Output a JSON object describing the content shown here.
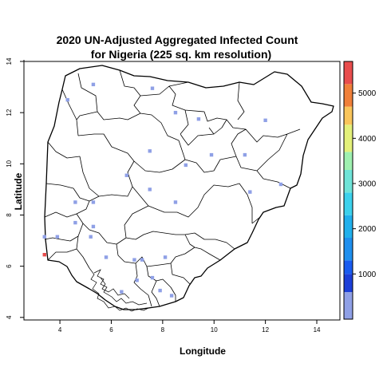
{
  "title_line1": "2020 UN-Adjusted Aggregated Infected Count",
  "title_line2": "for Nigeria (225 sq. km resolution)",
  "xlabel": "Longitude",
  "ylabel": "Latitude",
  "x_ticks": [
    "4",
    "6",
    "8",
    "10",
    "12",
    "14"
  ],
  "y_ticks": [
    "4",
    "6",
    "8",
    "10",
    "12",
    "14"
  ],
  "colorbar_ticks": [
    "1000",
    "2000",
    "3000",
    "4000",
    "5000"
  ],
  "colorbar": {
    "min": 0,
    "max": 5700,
    "bands": [
      {
        "from": 0,
        "to": 600,
        "color": "#8fa0e6"
      },
      {
        "from": 600,
        "to": 1000,
        "color": "#1c3fd8"
      },
      {
        "from": 1000,
        "to": 1300,
        "color": "#1a5cf0"
      },
      {
        "from": 1300,
        "to": 1800,
        "color": "#1f8fee"
      },
      {
        "from": 1800,
        "to": 2300,
        "color": "#21b0ec"
      },
      {
        "from": 2300,
        "to": 2800,
        "color": "#3dd1ec"
      },
      {
        "from": 2800,
        "to": 3300,
        "color": "#6fe3d8"
      },
      {
        "from": 3300,
        "to": 3700,
        "color": "#9ff0b0"
      },
      {
        "from": 3700,
        "to": 4300,
        "color": "#e3f07a"
      },
      {
        "from": 4300,
        "to": 4700,
        "color": "#f9c55b"
      },
      {
        "from": 4700,
        "to": 5200,
        "color": "#f0803a"
      },
      {
        "from": 5200,
        "to": 5700,
        "color": "#e84d4d"
      }
    ]
  },
  "chart_data": {
    "type": "scatter",
    "title": "2020 UN-Adjusted Aggregated Infected Count for Nigeria (225 sq. km resolution)",
    "xlabel": "Longitude",
    "ylabel": "Latitude",
    "xlim": [
      2.6,
      14.9
    ],
    "ylim": [
      3.9,
      14.0
    ],
    "points": [
      {
        "lon": 4.3,
        "lat": 12.5,
        "value": 300
      },
      {
        "lon": 5.3,
        "lat": 13.1,
        "value": 300
      },
      {
        "lon": 7.6,
        "lat": 12.95,
        "value": 300
      },
      {
        "lon": 8.5,
        "lat": 12.0,
        "value": 300
      },
      {
        "lon": 9.4,
        "lat": 11.75,
        "value": 300
      },
      {
        "lon": 12.0,
        "lat": 11.7,
        "value": 300
      },
      {
        "lon": 7.5,
        "lat": 10.5,
        "value": 300
      },
      {
        "lon": 9.9,
        "lat": 10.35,
        "value": 300
      },
      {
        "lon": 11.2,
        "lat": 10.35,
        "value": 300
      },
      {
        "lon": 8.9,
        "lat": 9.95,
        "value": 300
      },
      {
        "lon": 6.6,
        "lat": 9.55,
        "value": 300
      },
      {
        "lon": 12.6,
        "lat": 9.2,
        "value": 300
      },
      {
        "lon": 11.4,
        "lat": 8.9,
        "value": 300
      },
      {
        "lon": 7.5,
        "lat": 9.0,
        "value": 300
      },
      {
        "lon": 4.6,
        "lat": 8.5,
        "value": 300
      },
      {
        "lon": 5.3,
        "lat": 8.5,
        "value": 300
      },
      {
        "lon": 8.5,
        "lat": 8.5,
        "value": 300
      },
      {
        "lon": 4.6,
        "lat": 7.7,
        "value": 300
      },
      {
        "lon": 5.3,
        "lat": 7.55,
        "value": 300
      },
      {
        "lon": 3.4,
        "lat": 7.15,
        "value": 300
      },
      {
        "lon": 3.9,
        "lat": 7.15,
        "value": 300
      },
      {
        "lon": 5.2,
        "lat": 7.15,
        "value": 300
      },
      {
        "lon": 5.8,
        "lat": 6.35,
        "value": 300
      },
      {
        "lon": 6.9,
        "lat": 6.25,
        "value": 300
      },
      {
        "lon": 7.2,
        "lat": 6.25,
        "value": 300
      },
      {
        "lon": 8.1,
        "lat": 6.35,
        "value": 300
      },
      {
        "lon": 7.6,
        "lat": 5.55,
        "value": 300
      },
      {
        "lon": 7.0,
        "lat": 5.45,
        "value": 300
      },
      {
        "lon": 7.9,
        "lat": 5.05,
        "value": 300
      },
      {
        "lon": 8.35,
        "lat": 4.85,
        "value": 300
      },
      {
        "lon": 6.4,
        "lat": 5.0,
        "value": 300
      },
      {
        "lon": 3.4,
        "lat": 6.45,
        "value": 5500
      }
    ]
  }
}
